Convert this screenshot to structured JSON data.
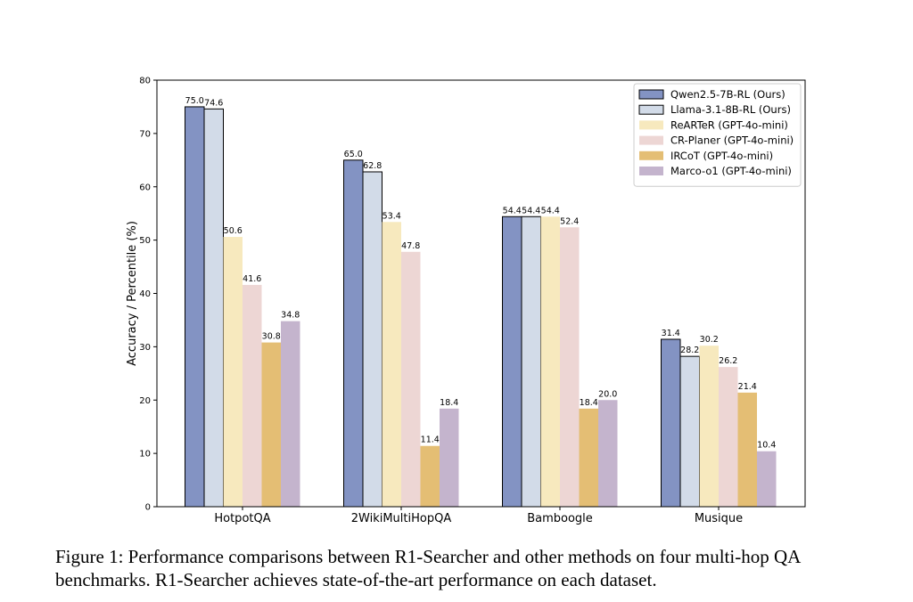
{
  "chart_data": {
    "type": "bar",
    "categories": [
      "HotpotQA",
      "2WikiMultiHopQA",
      "Bamboogle",
      "Musique"
    ],
    "ylabel": "Accuracy / Percentile (%)",
    "xlabel": "",
    "ylim": [
      0,
      80
    ],
    "yticks": [
      0,
      10,
      20,
      30,
      40,
      50,
      60,
      70,
      80
    ],
    "legend_position": "top-right",
    "grid": false,
    "series": [
      {
        "name": "Qwen2.5-7B-RL (Ours)",
        "color": "#8393c3",
        "edge": "#000000",
        "values": [
          75.0,
          65.0,
          54.4,
          31.4
        ],
        "labels": [
          "75.0",
          "65.0",
          "54.4",
          "31.4"
        ]
      },
      {
        "name": "Llama-3.1-8B-RL (Ours)",
        "color": "#d2dbe8",
        "edge": "#000000",
        "values": [
          74.6,
          62.8,
          54.4,
          28.2
        ],
        "labels": [
          "74.6",
          "62.8",
          "54.4",
          "28.2"
        ]
      },
      {
        "name": "ReARTeR (GPT-4o-mini)",
        "color": "#f7e9be",
        "edge": "none",
        "values": [
          50.6,
          53.4,
          54.4,
          30.2
        ],
        "labels": [
          "50.6",
          "53.4",
          "54.4",
          "30.2"
        ]
      },
      {
        "name": "CR-Planer (GPT-4o-mini)",
        "color": "#edd6d4",
        "edge": "none",
        "values": [
          41.6,
          47.8,
          52.4,
          26.2
        ],
        "labels": [
          "41.6",
          "47.8",
          "52.4",
          "26.2"
        ]
      },
      {
        "name": "IRCoT (GPT-4o-mini)",
        "color": "#e4be74",
        "edge": "none",
        "values": [
          30.8,
          11.4,
          18.4,
          21.4
        ],
        "labels": [
          "30.8",
          "11.4",
          "18.4",
          "21.4"
        ]
      },
      {
        "name": "Marco-o1 (GPT-4o-mini)",
        "color": "#c4b4cd",
        "edge": "none",
        "values": [
          34.8,
          18.4,
          20.0,
          10.4
        ],
        "labels": [
          "34.8",
          "18.4",
          "20.0",
          "10.4"
        ]
      }
    ]
  },
  "caption": "Figure 1: Performance comparisons between R1-Searcher and other methods on four multi-hop QA benchmarks. R1-Searcher achieves state-of-the-art performance on each dataset."
}
